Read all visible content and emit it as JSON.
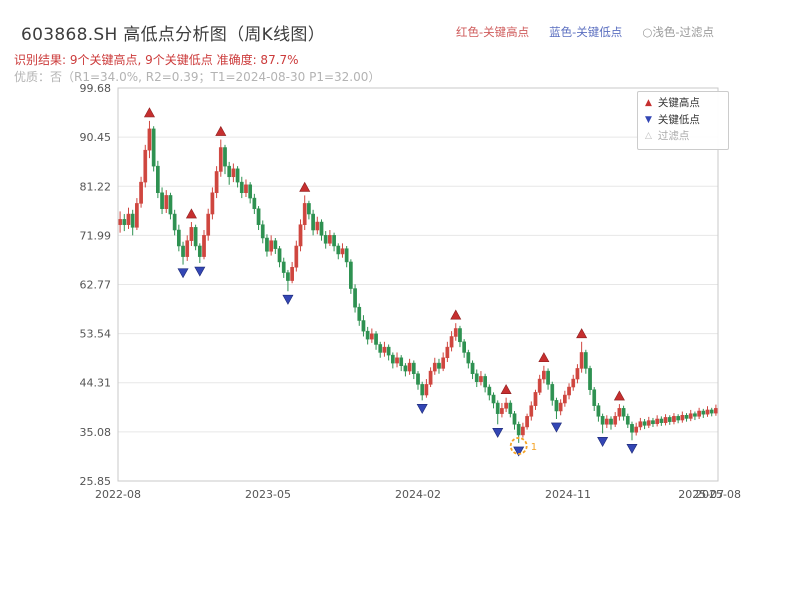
{
  "header": {
    "title": "603868.SH 高低点分析图（周K线图）",
    "legend_top": [
      {
        "label": "红色-关键高点",
        "color": "#cf5b5b"
      },
      {
        "label": "蓝色-关键低点",
        "color": "#5b6fc0"
      },
      {
        "label": "○浅色-过滤点",
        "color": "#9a9a9a"
      }
    ],
    "result_line": "识别结果: 9个关键高点, 9个关键低点  准确度: 87.7%",
    "quality_line": "优质：否（R1=34.0%, R2=0.39；T1=2024-08-30 P1=32.00）"
  },
  "legend_box": {
    "items": [
      {
        "label": "关键高点",
        "marker": "triangle-up",
        "color": "#c62f2f",
        "label_color": "#333333"
      },
      {
        "label": "关键低点",
        "marker": "triangle-down",
        "color": "#3346b4",
        "label_color": "#333333"
      },
      {
        "label": "过滤点",
        "marker": "triangle-hollow",
        "color": "#bbbbbb",
        "label_color": "#aaaaaa"
      }
    ]
  },
  "chart_data": {
    "type": "candlestick",
    "title": "603868.SH 高低点分析图（周K线图）",
    "xlabel": "",
    "ylabel": "",
    "ylim": [
      25.85,
      99.68
    ],
    "y_ticks": [
      99.68,
      90.45,
      81.22,
      71.99,
      62.77,
      53.54,
      44.31,
      35.08,
      25.85
    ],
    "x_ticks": [
      {
        "label": "2022-08",
        "pos": 0
      },
      {
        "label": "2023-05",
        "pos": 0.25
      },
      {
        "label": "2024-02",
        "pos": 0.5
      },
      {
        "label": "2024-11",
        "pos": 0.75
      },
      {
        "label": "2025-07",
        "pos": 0.972
      },
      {
        "label": "2025-08",
        "pos": 1
      }
    ],
    "colors": {
      "up": "#cf463f",
      "down": "#2e9151",
      "key_high": "#c62f2f",
      "key_low": "#3346b4",
      "grid": "#e7e7e7",
      "border": "#c9c9c9",
      "tick_text": "#555555",
      "annotation": "#f5a325"
    },
    "candles": [
      [
        74,
        76.5,
        72.5,
        75
      ],
      [
        75,
        76,
        72.8,
        74
      ],
      [
        74,
        77.2,
        73.2,
        76
      ],
      [
        76,
        76.8,
        72,
        73.5
      ],
      [
        73.5,
        79,
        73,
        78
      ],
      [
        78,
        83,
        77.2,
        82
      ],
      [
        82,
        89,
        81,
        88
      ],
      [
        88,
        93.5,
        86.5,
        92
      ],
      [
        92,
        92.5,
        84,
        85
      ],
      [
        85,
        86,
        79,
        80
      ],
      [
        80,
        81,
        76,
        77
      ],
      [
        77,
        80.5,
        76.2,
        79.5
      ],
      [
        79.5,
        80,
        75,
        76
      ],
      [
        76,
        76.8,
        72,
        73
      ],
      [
        73,
        74,
        69,
        70
      ],
      [
        70,
        70.8,
        66.5,
        68
      ],
      [
        68,
        72,
        67.2,
        71
      ],
      [
        71,
        74.5,
        70,
        73.5
      ],
      [
        73.5,
        74,
        69.2,
        70
      ],
      [
        70,
        70.5,
        66.8,
        68
      ],
      [
        68,
        73,
        67.5,
        72
      ],
      [
        72,
        77,
        71,
        76
      ],
      [
        76,
        81,
        75,
        80
      ],
      [
        80,
        85,
        79,
        84
      ],
      [
        84,
        90,
        83,
        88.5
      ],
      [
        88.5,
        89,
        83.5,
        85
      ],
      [
        85,
        85.8,
        81.5,
        83
      ],
      [
        83,
        85.5,
        82,
        84.5
      ],
      [
        84.5,
        85,
        81,
        82
      ],
      [
        82,
        83,
        79,
        80
      ],
      [
        80,
        82.5,
        79.2,
        81.5
      ],
      [
        81.5,
        82,
        78,
        79
      ],
      [
        79,
        79.8,
        76,
        77
      ],
      [
        77,
        77.5,
        73,
        74
      ],
      [
        74,
        74.8,
        70.5,
        71.5
      ],
      [
        71.5,
        72.2,
        68,
        69
      ],
      [
        69,
        72,
        68.2,
        71
      ],
      [
        71,
        71.5,
        68.5,
        69.5
      ],
      [
        69.5,
        70,
        66,
        67
      ],
      [
        67,
        67.8,
        64,
        65
      ],
      [
        65,
        65.5,
        61.5,
        63.5
      ],
      [
        63.5,
        67,
        63,
        66
      ],
      [
        66,
        71,
        65.2,
        70
      ],
      [
        70,
        75,
        69,
        74
      ],
      [
        74,
        79.5,
        73,
        78
      ],
      [
        78,
        78.5,
        75,
        76
      ],
      [
        76,
        76.8,
        72,
        73
      ],
      [
        73,
        75.5,
        72.2,
        74.5
      ],
      [
        74.5,
        75,
        71,
        72
      ],
      [
        72,
        72.8,
        69.5,
        70.5
      ],
      [
        70.5,
        73,
        70,
        72
      ],
      [
        72,
        72.5,
        69,
        70
      ],
      [
        70,
        70.5,
        67.5,
        68.5
      ],
      [
        68.5,
        70.5,
        67.8,
        69.5
      ],
      [
        69.5,
        70,
        66,
        67
      ],
      [
        67,
        67.5,
        61,
        62
      ],
      [
        62,
        62.8,
        57.5,
        58.5
      ],
      [
        58.5,
        59.2,
        55,
        56
      ],
      [
        56,
        57,
        53,
        54
      ],
      [
        54,
        54.8,
        51.5,
        52.5
      ],
      [
        52.5,
        54.5,
        51.8,
        53.5
      ],
      [
        53.5,
        54,
        50.5,
        51.5
      ],
      [
        51.5,
        52,
        49,
        50
      ],
      [
        50,
        52,
        49.2,
        51
      ],
      [
        51,
        51.5,
        48.5,
        49.5
      ],
      [
        49.5,
        50,
        47,
        48
      ],
      [
        48,
        50,
        47.2,
        49
      ],
      [
        49,
        49.5,
        46.5,
        47.5
      ],
      [
        47.5,
        48,
        45.5,
        46.5
      ],
      [
        46.5,
        48.8,
        45.8,
        48
      ],
      [
        48,
        48.5,
        45,
        46
      ],
      [
        46,
        46.5,
        43,
        44
      ],
      [
        44,
        44.5,
        41,
        42
      ],
      [
        42,
        45,
        41.5,
        44
      ],
      [
        44,
        47.2,
        43.5,
        46.5
      ],
      [
        46.5,
        49,
        45.8,
        48
      ],
      [
        48,
        48.8,
        46,
        47
      ],
      [
        47,
        50,
        46.5,
        49
      ],
      [
        49,
        52,
        48.2,
        51
      ],
      [
        51,
        54,
        50.2,
        53
      ],
      [
        53,
        55.5,
        52.2,
        54.5
      ],
      [
        54.5,
        55,
        51,
        52
      ],
      [
        52,
        52.5,
        49,
        50
      ],
      [
        50,
        50.5,
        47,
        48
      ],
      [
        48,
        48.5,
        45,
        46
      ],
      [
        46,
        46.8,
        43.5,
        44.5
      ],
      [
        44.5,
        46.5,
        43.8,
        45.5
      ],
      [
        45.5,
        46,
        42.5,
        43.5
      ],
      [
        43.5,
        44,
        41,
        42
      ],
      [
        42,
        42.5,
        39.5,
        40.5
      ],
      [
        40.5,
        41,
        36.5,
        38.5
      ],
      [
        38.5,
        40.5,
        37.8,
        39.5
      ],
      [
        39.5,
        41.5,
        38.8,
        40.5
      ],
      [
        40.5,
        41,
        37.8,
        38.5
      ],
      [
        38.5,
        39,
        35.5,
        36.5
      ],
      [
        36.5,
        37,
        33,
        34.5
      ],
      [
        34.5,
        36.8,
        34,
        36
      ],
      [
        36,
        38.5,
        35.5,
        38
      ],
      [
        38,
        40.8,
        37.2,
        40
      ],
      [
        40,
        43,
        39.2,
        42.5
      ],
      [
        42.5,
        45.8,
        42,
        45
      ],
      [
        45,
        47.5,
        44.2,
        46.5
      ],
      [
        46.5,
        47,
        43,
        44
      ],
      [
        44,
        44.5,
        40,
        41
      ],
      [
        41,
        41.5,
        37.5,
        39
      ],
      [
        39,
        41.2,
        38.2,
        40.5
      ],
      [
        40.5,
        42.8,
        39.8,
        42
      ],
      [
        42,
        44.2,
        41.2,
        43.5
      ],
      [
        43.5,
        45.8,
        42.8,
        45
      ],
      [
        45,
        47.8,
        44.2,
        47
      ],
      [
        47,
        52,
        46.2,
        50
      ],
      [
        50,
        50.5,
        46,
        47
      ],
      [
        47,
        47.5,
        42,
        43
      ],
      [
        43,
        43.5,
        39,
        40
      ],
      [
        40,
        40.5,
        37,
        38
      ],
      [
        38,
        38.5,
        34.8,
        36.5
      ],
      [
        36.5,
        38.2,
        35.8,
        37.5
      ],
      [
        37.5,
        38,
        35.5,
        36.5
      ],
      [
        36.5,
        38.8,
        36,
        38
      ],
      [
        38,
        40.3,
        37.2,
        39.5
      ],
      [
        39.5,
        40,
        37.2,
        38
      ],
      [
        38,
        38.5,
        35.8,
        36.5
      ],
      [
        36.5,
        37,
        33.5,
        35
      ],
      [
        35,
        36.8,
        34.4,
        36
      ],
      [
        36,
        37.7,
        35.4,
        37
      ],
      [
        37,
        37.5,
        35.6,
        36.3
      ],
      [
        36.3,
        37.9,
        35.8,
        37.2
      ],
      [
        37.2,
        37.7,
        36,
        36.6
      ],
      [
        36.6,
        38.2,
        36.1,
        37.5
      ],
      [
        37.5,
        38,
        36.2,
        36.8
      ],
      [
        36.8,
        38.4,
        36.3,
        37.8
      ],
      [
        37.8,
        38.2,
        36.4,
        37
      ],
      [
        37,
        38.6,
        36.5,
        38
      ],
      [
        38,
        38.4,
        36.7,
        37.3
      ],
      [
        37.3,
        38.9,
        36.8,
        38.2
      ],
      [
        38.2,
        38.6,
        37,
        37.6
      ],
      [
        37.6,
        39.2,
        37.1,
        38.5
      ],
      [
        38.5,
        38.9,
        37.3,
        38
      ],
      [
        38,
        39.6,
        37.5,
        39
      ],
      [
        39,
        39.4,
        37.7,
        38.4
      ],
      [
        38.4,
        39.9,
        37.9,
        39.2
      ],
      [
        39.2,
        39.6,
        38,
        38.6
      ],
      [
        38.6,
        40.2,
        38.1,
        39.5
      ]
    ],
    "key_highs": [
      {
        "i": 7,
        "price": 93.5
      },
      {
        "i": 17,
        "price": 74.5
      },
      {
        "i": 24,
        "price": 90.0
      },
      {
        "i": 44,
        "price": 79.5
      },
      {
        "i": 80,
        "price": 55.5
      },
      {
        "i": 92,
        "price": 41.5
      },
      {
        "i": 101,
        "price": 47.5
      },
      {
        "i": 110,
        "price": 52.0
      },
      {
        "i": 119,
        "price": 40.3
      }
    ],
    "key_lows": [
      {
        "i": 15,
        "price": 66.5
      },
      {
        "i": 19,
        "price": 66.8
      },
      {
        "i": 40,
        "price": 61.5
      },
      {
        "i": 72,
        "price": 41.0
      },
      {
        "i": 90,
        "price": 36.5
      },
      {
        "i": 95,
        "price": 33.0
      },
      {
        "i": 104,
        "price": 37.5
      },
      {
        "i": 115,
        "price": 34.8
      },
      {
        "i": 122,
        "price": 33.5
      }
    ],
    "annotation": {
      "i": 95,
      "label": "1"
    }
  }
}
